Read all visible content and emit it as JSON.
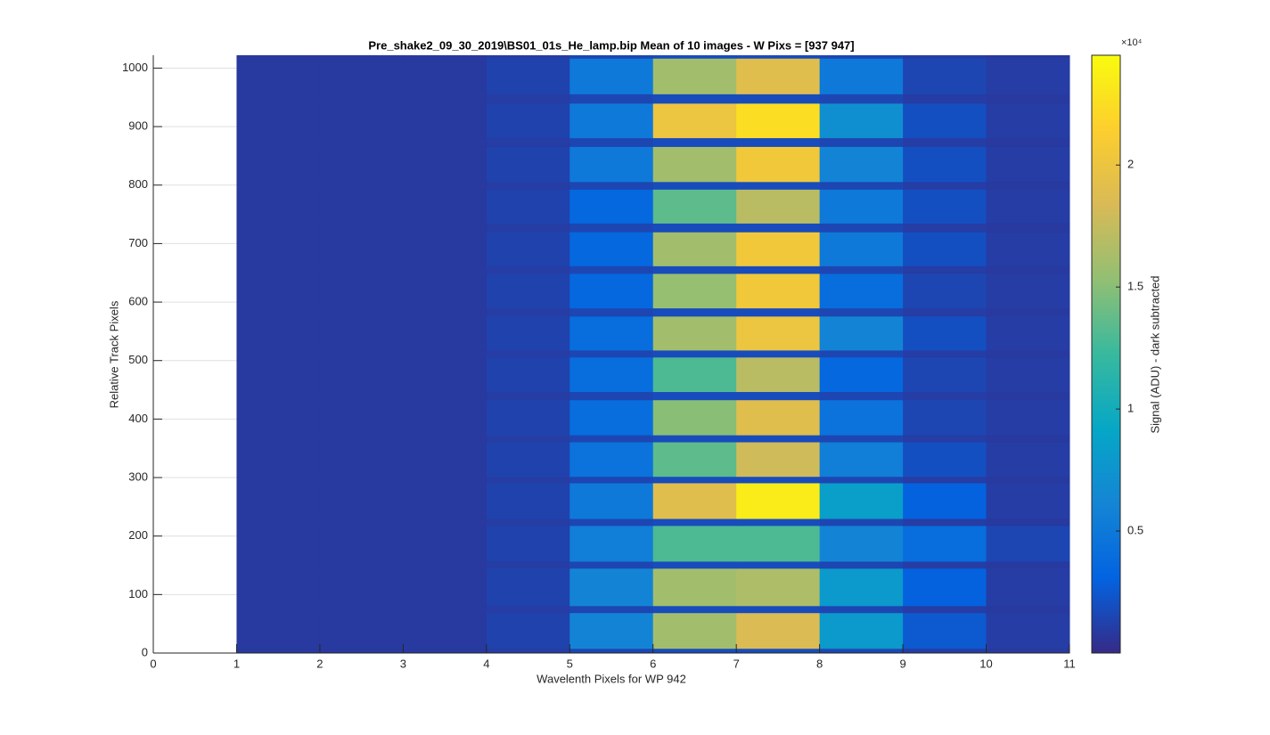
{
  "chart_data": {
    "type": "heatmap",
    "title": "Pre_shake2_09_30_2019\\BS01_01s_He_lamp.bip  Mean of 10 images - W Pixs = [937  947]",
    "x_label": "Wavelenth Pixels for WP 942",
    "y_label": "Relative Track Pixels",
    "colorbar_label": "Signal (ADU) - dark subtracted",
    "colorbar_exponent": "×10⁴",
    "xlim": [
      0,
      11
    ],
    "ylim": [
      0,
      1022
    ],
    "xticks": [
      0,
      1,
      2,
      3,
      4,
      5,
      6,
      7,
      8,
      9,
      10,
      11
    ],
    "yticks": [
      0,
      100,
      200,
      300,
      400,
      500,
      600,
      700,
      800,
      900,
      1000
    ],
    "grid": true,
    "x_edges": [
      1,
      2,
      3,
      4,
      5,
      6,
      7,
      8,
      9,
      10,
      11
    ],
    "y_edges": [
      0,
      8,
      69,
      81,
      145,
      157,
      218,
      230,
      291,
      302,
      361,
      373,
      433,
      447,
      506,
      518,
      576,
      590,
      649,
      662,
      720,
      735,
      793,
      806,
      866,
      881,
      940,
      956,
      1017,
      1022
    ],
    "values": [
      [
        800,
        800,
        800,
        1000,
        1500,
        1800,
        1800,
        1500,
        1000,
        800
      ],
      [
        800,
        800,
        800,
        1300,
        6000,
        16000,
        18500,
        8000,
        2500,
        1000
      ],
      [
        800,
        800,
        800,
        1000,
        1500,
        1800,
        1800,
        1500,
        1000,
        800
      ],
      [
        800,
        800,
        800,
        1300,
        6000,
        16000,
        16500,
        8000,
        3000,
        1000
      ],
      [
        800,
        800,
        800,
        1000,
        1500,
        1800,
        1800,
        1500,
        1000,
        800
      ],
      [
        800,
        800,
        800,
        1300,
        5500,
        13000,
        13000,
        6000,
        4000,
        1500
      ],
      [
        800,
        800,
        800,
        1000,
        1500,
        1800,
        1800,
        1500,
        1000,
        800
      ],
      [
        800,
        800,
        800,
        1300,
        5000,
        19000,
        23500,
        8500,
        3000,
        1000
      ],
      [
        800,
        800,
        800,
        1000,
        1500,
        1800,
        1800,
        1500,
        1000,
        800
      ],
      [
        800,
        800,
        800,
        1300,
        4500,
        13500,
        18000,
        5500,
        2000,
        1000
      ],
      [
        800,
        800,
        800,
        1000,
        1500,
        1800,
        1800,
        1500,
        1000,
        800
      ],
      [
        800,
        800,
        800,
        1300,
        4000,
        15000,
        19000,
        4500,
        1500,
        1000
      ],
      [
        800,
        800,
        800,
        1000,
        1500,
        1800,
        1800,
        1500,
        1000,
        800
      ],
      [
        800,
        800,
        800,
        1300,
        4000,
        13000,
        17000,
        3500,
        1500,
        1000
      ],
      [
        800,
        800,
        800,
        1000,
        1500,
        1800,
        1800,
        1500,
        1000,
        800
      ],
      [
        800,
        800,
        800,
        1300,
        4000,
        16000,
        20000,
        6000,
        2000,
        1000
      ],
      [
        800,
        800,
        800,
        1000,
        1500,
        1800,
        1800,
        1500,
        1000,
        800
      ],
      [
        800,
        800,
        800,
        1300,
        3500,
        15500,
        20500,
        4000,
        1500,
        1000
      ],
      [
        800,
        800,
        800,
        1000,
        1500,
        1800,
        1800,
        1500,
        1000,
        800
      ],
      [
        800,
        800,
        800,
        1300,
        3500,
        16000,
        20500,
        5000,
        2000,
        1000
      ],
      [
        800,
        800,
        800,
        1000,
        1500,
        1800,
        1800,
        1500,
        1000,
        800
      ],
      [
        800,
        800,
        800,
        1300,
        3500,
        13500,
        17000,
        5000,
        2000,
        1000
      ],
      [
        800,
        800,
        800,
        1000,
        1500,
        1800,
        1800,
        1500,
        1000,
        800
      ],
      [
        800,
        800,
        800,
        1300,
        5000,
        16000,
        20500,
        6000,
        2000,
        1000
      ],
      [
        800,
        800,
        800,
        1000,
        1500,
        1800,
        1800,
        1500,
        1000,
        800
      ],
      [
        800,
        800,
        800,
        1300,
        5000,
        20000,
        22500,
        7000,
        2000,
        1000
      ],
      [
        800,
        800,
        800,
        1000,
        1500,
        1800,
        1800,
        1500,
        1000,
        800
      ],
      [
        800,
        800,
        800,
        1300,
        5000,
        16000,
        19000,
        5000,
        1500,
        1000
      ],
      [
        800,
        800,
        800,
        1000,
        1500,
        1800,
        1800,
        1500,
        1000,
        800
      ]
    ],
    "clim": [
      0,
      24500
    ],
    "colormap": [
      "#352a87",
      "#0363e1",
      "#1485d4",
      "#06a7c6",
      "#38b99e",
      "#92bf73",
      "#d9ba56",
      "#fcce2e",
      "#f9fb0e"
    ],
    "colorbar_ticks": [
      {
        "value": 5000,
        "label": "0.5"
      },
      {
        "value": 10000,
        "label": "1"
      },
      {
        "value": 15000,
        "label": "1.5"
      },
      {
        "value": 20000,
        "label": "2"
      }
    ]
  }
}
